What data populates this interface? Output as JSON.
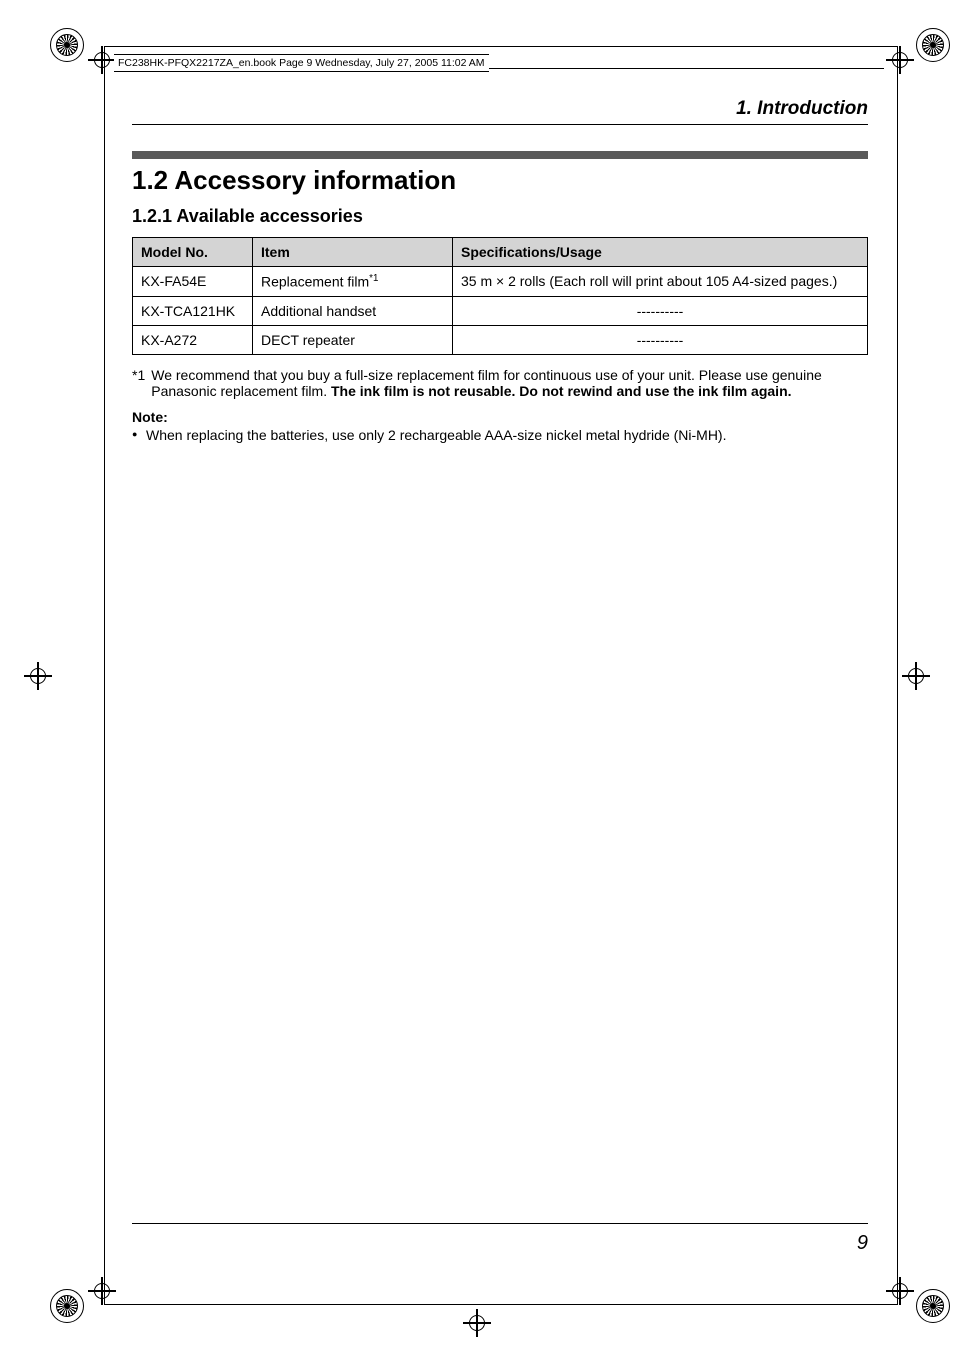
{
  "frame": {
    "book_header": "FC238HK-PFQX2217ZA_en.book  Page 9  Wednesday, July 27, 2005  11:02 AM"
  },
  "header": {
    "running_head": "1. Introduction"
  },
  "section": {
    "title": "1.2 Accessory information",
    "subsection_title": "1.2.1 Available accessories"
  },
  "table": {
    "columns": [
      "Model No.",
      "Item",
      "Specifications/Usage"
    ],
    "rows": [
      {
        "model": "KX-FA54E",
        "item_prefix": "Replacement film",
        "item_sup": "*1",
        "spec": "35 m × 2 rolls (Each roll will print about 105 A4-sized pages.)",
        "spec_center": false
      },
      {
        "model": "KX-TCA121HK",
        "item_prefix": "Additional handset",
        "item_sup": "",
        "spec": "----------",
        "spec_center": true
      },
      {
        "model": "KX-A272",
        "item_prefix": "DECT repeater",
        "item_sup": "",
        "spec": "----------",
        "spec_center": true
      }
    ]
  },
  "footnote": {
    "marker": "*1",
    "text_plain": "We recommend that you buy a full-size replacement film for continuous use of your unit. Please use genuine Panasonic replacement film. ",
    "text_bold": "The ink film is not reusable. Do not rewind and use the ink film again."
  },
  "note": {
    "label": "Note:",
    "items": [
      "When replacing the batteries, use only 2 rechargeable AAA-size nickel metal hydride (Ni-MH)."
    ]
  },
  "footer": {
    "page_number": "9"
  }
}
